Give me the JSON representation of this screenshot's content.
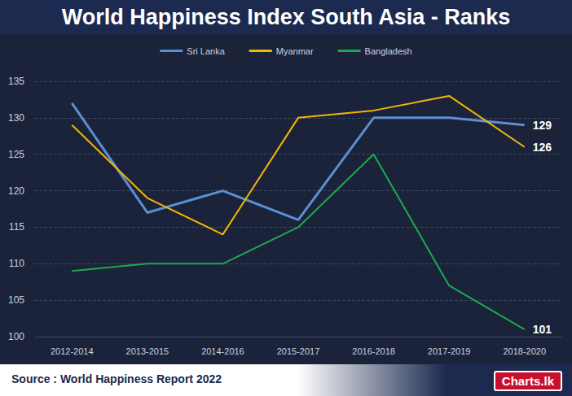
{
  "chart_data": {
    "type": "line",
    "title": "World Happiness Index South Asia - Ranks",
    "source": "Source : World Happiness Report 2022",
    "logo": "Charts.lk",
    "categories": [
      "2012-2014",
      "2013-2015",
      "2014-2016",
      "2015-2017",
      "2016-2018",
      "2017-2019",
      "2018-2020"
    ],
    "series": [
      {
        "name": "Sri Lanka",
        "color": "#5b8fd0",
        "values": [
          132,
          117,
          120,
          116,
          130,
          130,
          129
        ],
        "value_labels": [
          null,
          null,
          null,
          null,
          null,
          null,
          "129"
        ]
      },
      {
        "name": "Myanmar",
        "color": "#f2b705",
        "values": [
          129,
          119,
          114,
          130,
          131,
          133,
          126
        ],
        "value_labels": [
          null,
          null,
          null,
          null,
          null,
          null,
          "126"
        ]
      },
      {
        "name": "Bangladesh",
        "color": "#1fa84f",
        "values": [
          109,
          110,
          110,
          115,
          125,
          107,
          101
        ],
        "value_labels": [
          null,
          null,
          null,
          null,
          null,
          null,
          "101"
        ]
      }
    ],
    "ylim": [
      100,
      135
    ],
    "yticks": [
      100,
      105,
      110,
      115,
      120,
      125,
      130,
      135
    ],
    "grid": true,
    "legend": "top"
  }
}
